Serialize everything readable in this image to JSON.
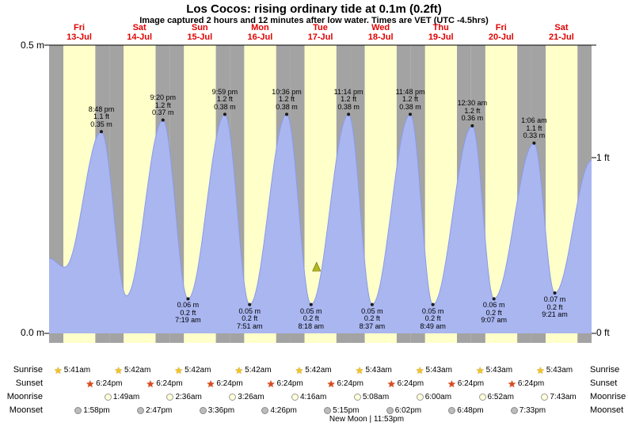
{
  "title": "Los Cocos: rising ordinary tide at 0.1m (0.2ft)",
  "subtitle": "Image captured 2 hours and 12 minutes after low water. Times are VET (UTC -4.5hrs)",
  "axis": {
    "left": [
      "0.5 m",
      "0.0 m"
    ],
    "right": [
      "1 ft",
      "0 ft"
    ]
  },
  "chart_data": {
    "type": "area",
    "title": "Los Cocos: rising ordinary tide at 0.1m (0.2ft)",
    "ylim_m": [
      0,
      0.5
    ],
    "ylabel_left": "m",
    "ylabel_right": "ft",
    "days": [
      {
        "name": "Fri",
        "date": "13-Jul"
      },
      {
        "name": "Sat",
        "date": "14-Jul"
      },
      {
        "name": "Sun",
        "date": "15-Jul"
      },
      {
        "name": "Mon",
        "date": "16-Jul"
      },
      {
        "name": "Tue",
        "date": "17-Jul"
      },
      {
        "name": "Wed",
        "date": "18-Jul"
      },
      {
        "name": "Thu",
        "date": "19-Jul"
      },
      {
        "name": "Fri",
        "date": "20-Jul"
      },
      {
        "name": "Sat",
        "date": "21-Jul"
      }
    ],
    "points": [
      {
        "day": 0,
        "t": 0.0,
        "h": 0.13
      },
      {
        "day": 0,
        "t": 6.3,
        "h": 0.115
      },
      {
        "day": 0,
        "t": 20.8,
        "h": 0.35,
        "type": "high",
        "lines": [
          "8:48 pm",
          "1.1 ft",
          "0.35 m"
        ]
      },
      {
        "day": 1,
        "t": 6.8,
        "h": 0.065
      },
      {
        "day": 1,
        "t": 21.333,
        "h": 0.37,
        "type": "high",
        "lines": [
          "9:20 pm",
          "1.2 ft",
          "0.37 m"
        ]
      },
      {
        "day": 2,
        "t": 7.317,
        "h": 0.06,
        "type": "low",
        "lines": [
          "0.06 m",
          "0.2 ft",
          "7:19 am"
        ]
      },
      {
        "day": 2,
        "t": 21.983,
        "h": 0.38,
        "type": "high",
        "lines": [
          "9:59 pm",
          "1.2 ft",
          "0.38 m"
        ]
      },
      {
        "day": 3,
        "t": 7.85,
        "h": 0.05,
        "type": "low",
        "lines": [
          "0.05 m",
          "0.2 ft",
          "7:51 am"
        ]
      },
      {
        "day": 3,
        "t": 22.6,
        "h": 0.38,
        "type": "high",
        "lines": [
          "10:36 pm",
          "1.2 ft",
          "0.38 m"
        ]
      },
      {
        "day": 4,
        "t": 8.3,
        "h": 0.05,
        "type": "low",
        "lines": [
          "0.05 m",
          "0.2 ft",
          "8:18 am"
        ]
      },
      {
        "day": 4,
        "t": 23.233,
        "h": 0.38,
        "type": "high",
        "lines": [
          "11:14 pm",
          "1.2 ft",
          "0.38 m"
        ]
      },
      {
        "day": 5,
        "t": 8.617,
        "h": 0.05,
        "type": "low",
        "lines": [
          "0.05 m",
          "0.2 ft",
          "8:37 am"
        ]
      },
      {
        "day": 5,
        "t": 23.8,
        "h": 0.38,
        "type": "high",
        "lines": [
          "11:48 pm",
          "1.2 ft",
          "0.38 m"
        ]
      },
      {
        "day": 6,
        "t": 8.817,
        "h": 0.05,
        "type": "low",
        "lines": [
          "0.05 m",
          "0.2 ft",
          "8:49 am"
        ]
      },
      {
        "day": 7,
        "t": 0.5,
        "h": 0.36,
        "type": "high",
        "lines": [
          "12:30 am",
          "1.2 ft",
          "0.36 m"
        ]
      },
      {
        "day": 7,
        "t": 9.117,
        "h": 0.06,
        "type": "low",
        "lines": [
          "0.06 m",
          "0.2 ft",
          "9:07 am"
        ]
      },
      {
        "day": 8,
        "t": 1.1,
        "h": 0.33,
        "type": "high",
        "lines": [
          "1:06 am",
          "1.1 ft",
          "0.33 m"
        ]
      },
      {
        "day": 8,
        "t": 9.35,
        "h": 0.07,
        "type": "low",
        "lines": [
          "0.07 m",
          "0.2 ft",
          "9:21 am"
        ]
      },
      {
        "day": 8,
        "t": 24.0,
        "h": 0.3
      }
    ],
    "marker": {
      "day": 4,
      "t": 10.5,
      "h": 0.115
    },
    "colors": {
      "day_band": "#ffffc9",
      "night_band": "#a3a3a3",
      "tide_fill": "#a9b6f0",
      "tide_edge": "#8a9bea",
      "marker": "#b5ba1e",
      "day_label": "#e00000"
    }
  },
  "astro": {
    "rows": [
      {
        "key": "sunrise",
        "label": "Sunrise",
        "entries": [
          {
            "day": 0,
            "time": "5:41am"
          },
          {
            "day": 1,
            "time": "5:42am"
          },
          {
            "day": 2,
            "time": "5:42am"
          },
          {
            "day": 3,
            "time": "5:42am"
          },
          {
            "day": 4,
            "time": "5:42am"
          },
          {
            "day": 5,
            "time": "5:43am"
          },
          {
            "day": 6,
            "time": "5:43am"
          },
          {
            "day": 7,
            "time": "5:43am"
          },
          {
            "day": 8,
            "time": "5:43am"
          }
        ]
      },
      {
        "key": "sunset",
        "label": "Sunset",
        "entries": [
          {
            "day": 0,
            "time": "6:24pm"
          },
          {
            "day": 1,
            "time": "6:24pm"
          },
          {
            "day": 2,
            "time": "6:24pm"
          },
          {
            "day": 3,
            "time": "6:24pm"
          },
          {
            "day": 4,
            "time": "6:24pm"
          },
          {
            "day": 5,
            "time": "6:24pm"
          },
          {
            "day": 6,
            "time": "6:24pm"
          },
          {
            "day": 7,
            "time": "6:24pm"
          }
        ]
      },
      {
        "key": "moonrise",
        "label": "Moonrise",
        "entries": [
          {
            "day": 1,
            "time": "1:49am"
          },
          {
            "day": 2,
            "time": "2:36am"
          },
          {
            "day": 3,
            "time": "3:26am"
          },
          {
            "day": 4,
            "time": "4:16am"
          },
          {
            "day": 5,
            "time": "5:08am"
          },
          {
            "day": 6,
            "time": "6:00am"
          },
          {
            "day": 7,
            "time": "6:52am"
          },
          {
            "day": 8,
            "time": "7:43am"
          }
        ]
      },
      {
        "key": "moonset",
        "label": "Moonset",
        "entries": [
          {
            "day": 0,
            "time": "1:58pm"
          },
          {
            "day": 1,
            "time": "2:47pm"
          },
          {
            "day": 2,
            "time": "3:36pm"
          },
          {
            "day": 3,
            "time": "4:26pm"
          },
          {
            "day": 4,
            "time": "5:15pm"
          },
          {
            "day": 5,
            "time": "6:02pm"
          },
          {
            "day": 6,
            "time": "6:48pm"
          },
          {
            "day": 7,
            "time": "7:33pm"
          }
        ]
      }
    ],
    "moon_phase": "New Moon | 11:53pm"
  }
}
